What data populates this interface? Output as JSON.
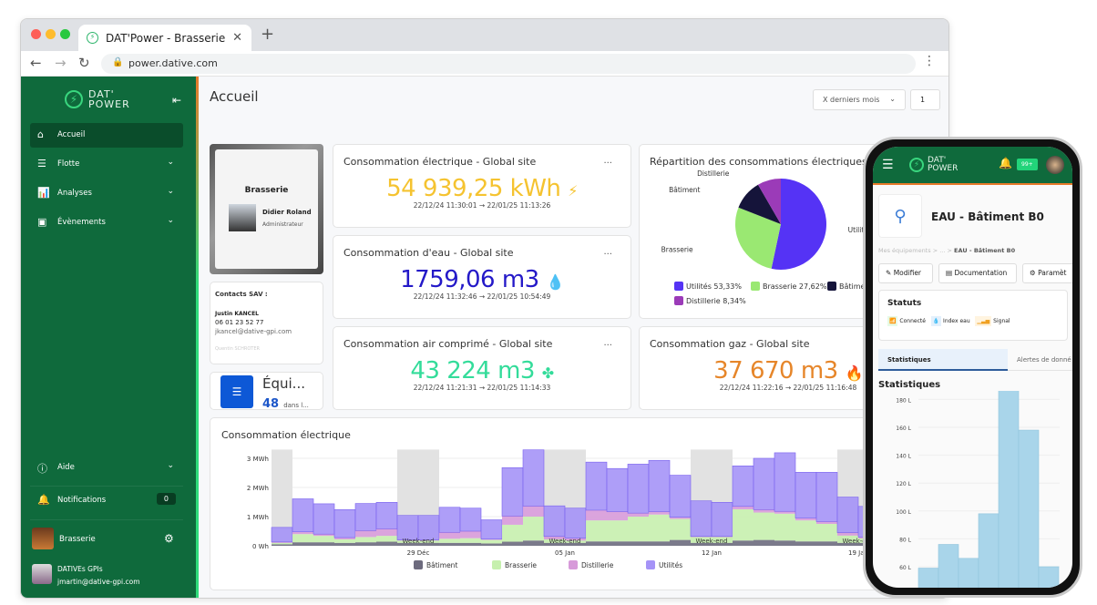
{
  "browser": {
    "tab_title": "DAT'Power - Brasserie",
    "url": "power.dative.com"
  },
  "sidebar": {
    "logo": [
      "DAT'",
      "POWER"
    ],
    "items": [
      {
        "label": "Accueil",
        "icon": "home-icon"
      },
      {
        "label": "Flotte",
        "icon": "fleet-icon"
      },
      {
        "label": "Analyses",
        "icon": "analytics-icon"
      },
      {
        "label": "Évènements",
        "icon": "calendar-icon"
      }
    ],
    "help": "Aide",
    "notifications": "Notifications",
    "notif_count": "0",
    "site": "Brasserie",
    "org": "DATIVEs GPIs",
    "email": "jmartin@dative-gpi.com"
  },
  "header": {
    "title": "Accueil",
    "period": "X derniers mois",
    "period_count": "1"
  },
  "site_card": {
    "name": "Brasserie",
    "person": "Didier Roland",
    "role": "Administrateur"
  },
  "contacts": {
    "title": "Contacts SAV :",
    "name": "Justin KANCEL",
    "phone": "06 01 23 52 77",
    "email": "jkancel@dative-gpi.com",
    "next": "Quentin SCHROTER"
  },
  "equip": {
    "title": "Équi...",
    "count": "48",
    "sub": "dans l..."
  },
  "kpis": [
    {
      "title": "Consommation électrique - Global site",
      "value": "54 939,25 kWh",
      "range": "22/12/24 11:30:01 → 22/01/25 11:13:26",
      "color": "#f5c330",
      "icon": "bolt-icon",
      "glyph": "⚡"
    },
    {
      "title": "Consommation d'eau - Global site",
      "value": "1759,06 m3",
      "range": "22/12/24 11:32:46 → 22/01/25 10:54:49",
      "color": "#2419c8",
      "icon": "droplet-icon",
      "glyph": "💧"
    },
    {
      "title": "Consommation air comprimé - Global site",
      "value": "43 224 m3",
      "range": "22/12/24 11:21:31 → 22/01/25 11:14:33",
      "color": "#33dc9a",
      "icon": "fan-icon",
      "glyph": "✤"
    },
    {
      "title": "Consommation gaz - Global site",
      "value": "37 670 m3",
      "range": "22/12/24 11:22:16 → 22/01/25 11:16:48",
      "color": "#e6862a",
      "icon": "flame-icon",
      "glyph": "🔥"
    }
  ],
  "kpi_more": "...",
  "chart_data": [
    {
      "type": "pie",
      "title": "Répartition des consommations électriques",
      "slices": [
        {
          "label": "Utilités",
          "value": 53.33,
          "legend": "Utilités 53,33%",
          "color": "#5533f5"
        },
        {
          "label": "Brasserie",
          "value": 27.62,
          "legend": "Brasserie 27,62%",
          "color": "#9ae872"
        },
        {
          "label": "Bâtiment",
          "value": 10.71,
          "legend": "Bâtime",
          "color": "#15143a"
        },
        {
          "label": "Distillerie",
          "value": 8.34,
          "legend": "Distillerie 8,34%",
          "color": "#9b3bb8"
        }
      ]
    },
    {
      "type": "bar",
      "stacked": true,
      "title": "Consommation électrique",
      "ylabel": "",
      "yticks": [
        "0 Wh",
        "1 MWh",
        "2 MWh",
        "3 MWh"
      ],
      "ylim": [
        0,
        3.3
      ],
      "unit": "MWh",
      "x_start": "22 Déc",
      "xticks": [
        {
          "label": "29 Déc",
          "index": 7
        },
        {
          "label": "05 Jan",
          "index": 14
        },
        {
          "label": "12 Jan",
          "index": 21
        },
        {
          "label": "19 Jan",
          "index": 28
        }
      ],
      "weekend_label": "Week-end",
      "weekends": [
        [
          0,
          0
        ],
        [
          6,
          7
        ],
        [
          13,
          14
        ],
        [
          20,
          21
        ],
        [
          27,
          28
        ]
      ],
      "series": [
        {
          "name": "Bâtiment",
          "color": "#6d6b7e",
          "values": [
            0.05,
            0.12,
            0.12,
            0.1,
            0.12,
            0.14,
            0.1,
            0.1,
            0.1,
            0.1,
            0.08,
            0.14,
            0.18,
            0.1,
            0.1,
            0.15,
            0.15,
            0.15,
            0.15,
            0.2,
            0.1,
            0.1,
            0.18,
            0.2,
            0.18,
            0.15,
            0.15,
            0.1,
            0.1,
            0.12
          ]
        },
        {
          "name": "Brasserie",
          "color": "#c6f0ae",
          "values": [
            0.05,
            0.28,
            0.22,
            0.12,
            0.18,
            0.2,
            0.08,
            0.08,
            0.14,
            0.16,
            0.12,
            0.58,
            0.82,
            0.12,
            0.08,
            0.72,
            0.72,
            0.85,
            0.92,
            0.72,
            0.2,
            0.2,
            1.07,
            0.94,
            0.92,
            0.72,
            0.6,
            0.25,
            0.15,
            0.78
          ]
        },
        {
          "name": "Distillerie",
          "color": "#d79ad9",
          "values": [
            0.03,
            0.08,
            0.06,
            0.06,
            0.22,
            0.24,
            0.02,
            0.02,
            0.22,
            0.24,
            0.03,
            0.3,
            0.36,
            0.1,
            0.08,
            0.35,
            0.3,
            0.12,
            0.1,
            0.06,
            0.02,
            0.02,
            0.1,
            0.1,
            0.08,
            0.08,
            0.08,
            0.1,
            0.05,
            0.28
          ]
        },
        {
          "name": "Utilités",
          "color": "#a593f7",
          "values": [
            0.5,
            1.13,
            1.04,
            0.96,
            0.93,
            0.91,
            0.84,
            0.84,
            0.86,
            0.79,
            0.66,
            1.66,
            1.93,
            1.05,
            1.03,
            1.65,
            1.48,
            1.68,
            1.76,
            1.44,
            1.22,
            1.17,
            1.39,
            1.76,
            2.01,
            1.57,
            1.69,
            1.22,
            1.05,
            1.48
          ]
        }
      ]
    },
    {
      "type": "bar",
      "title": "Statistiques",
      "yticks": [
        "60 L",
        "80 L",
        "100 L",
        "120 L",
        "140 L",
        "160 L",
        "180 L"
      ],
      "ylim": [
        50,
        190
      ],
      "unit": "L",
      "values": [
        59,
        76,
        66,
        98,
        190,
        158,
        60
      ],
      "color": "#a9d5ea"
    }
  ],
  "phone": {
    "badge": "99+",
    "title": "EAU - Bâtiment B0",
    "breadcrumb": [
      "Mes équipements",
      ">",
      "...",
      ">",
      "EAU - Bâtiment B0"
    ],
    "buttons": [
      "Modifier",
      "Documentation",
      "Paramèt"
    ],
    "status_title": "Statuts",
    "statuses": [
      "Connecté",
      "Index eau",
      "Signal"
    ],
    "tabs": [
      "Statistiques",
      "Alertes de donné"
    ],
    "stats_title": "Statistiques"
  }
}
